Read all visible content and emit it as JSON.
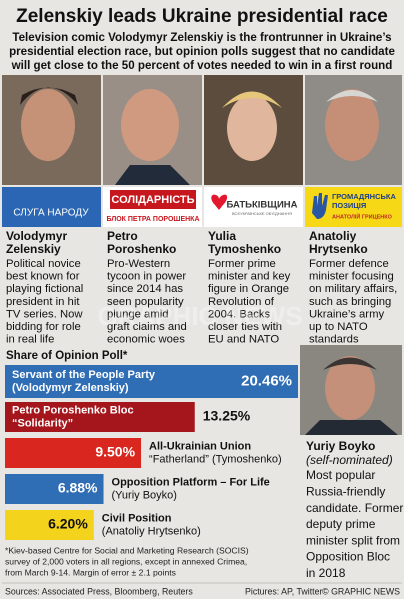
{
  "header": {
    "title": "Zelenskiy leads Ukraine presidential race",
    "subtitle": [
      "Television comic Volodymyr Zelenskiy is the frontrunner in Ukraine’s",
      "presidential election race, but opinion polls suggest that no candidate",
      "will get close to the 50 percent of votes needed to win in a first round"
    ]
  },
  "logos": {
    "servant": "СЛУГА НАРОДУ",
    "solidarity": "СОЛІДАРНІСТЬ",
    "solidarity_sub": "БЛОК ПЕТРА ПОРОШЕНКА",
    "fatherland": "БАТЬКІВЩИНА",
    "fatherland_sub": "ВСЕУКРАЇНСЬКЕ ОБ'ЄДНАННЯ",
    "civil": [
      "ГРОМАДЯНСЬКА",
      "ПОЗИЦІЯ"
    ],
    "civil_sub": "АНАТОЛІЙ ГРИЦЕНКО"
  },
  "candidates": [
    {
      "name": [
        "Volodymyr",
        "Zelenskiy"
      ],
      "lines": [
        "Political novice",
        "best known for",
        "playing fictional",
        "president in hit",
        "TV series. Now",
        "bidding for role",
        "in real life"
      ]
    },
    {
      "name": [
        "Petro",
        "Poroshenko"
      ],
      "lines": [
        "Pro-Western",
        "tycoon in power",
        "since 2014 has",
        "seen popularity",
        "plunge amid",
        "graft claims and",
        "economic woes"
      ]
    },
    {
      "name": [
        "Yulia",
        "Tymoshenko"
      ],
      "lines": [
        "Former prime",
        "minister and key",
        "figure in Orange",
        "Revolution of",
        "2004. Backs",
        "closer ties with",
        "EU and NATO"
      ]
    },
    {
      "name": [
        "Anatoliy",
        "Hrytsenko"
      ],
      "lines": [
        "Former defence",
        "minister focusing",
        "on military affairs,",
        "such as bringing",
        "Ukraine’s army",
        "up to NATO",
        "standards"
      ]
    }
  ],
  "boyko": {
    "name": "Yuriy Boyko",
    "note": "(self-nominated)",
    "lines": [
      "Most popular",
      "Russia-friendly",
      "candidate. Former",
      "deputy prime",
      "minister split from",
      "Opposition Bloc",
      "in 2018"
    ]
  },
  "chart_data": {
    "type": "bar",
    "orientation": "horizontal",
    "title": "Share of Opinion Poll*",
    "categories": [
      "Servant of the People Party",
      "Petro Poroshenko Bloc",
      "All-Ukrainian Union",
      "Opposition Platform – For Life",
      "Civil Position"
    ],
    "category_lines": [
      "(Volodymyr Zelenskiy)",
      "“Solidarity”",
      "“Fatherland” (Tymoshenko)",
      "(Yuriy Boyko)",
      "(Anatoliy Hrytsenko)"
    ],
    "values": [
      20.46,
      13.25,
      9.5,
      6.88,
      6.2
    ],
    "value_labels": [
      "20.46%",
      "13.25%",
      "9.50%",
      "6.88%",
      "6.20%"
    ],
    "colors": [
      "#2f6db5",
      "#a5161c",
      "#d9261f",
      "#2f6db5",
      "#f3d31c"
    ]
  },
  "footnote": [
    "*Kiev-based Centre for Social and Marketing Research (SOCIS)",
    "survey of 2,000 voters in all regions, except in annexed Crimea,",
    "from March 9-14. Margin of error ± 2.1 points"
  ],
  "watermark": "GRAPHIC NEWS",
  "footer": {
    "sources": "Sources: Associated Press, Bloomberg, Reuters",
    "pictures": "Pictures: AP, Twitter",
    "credit": "© GRAPHIC NEWS"
  }
}
